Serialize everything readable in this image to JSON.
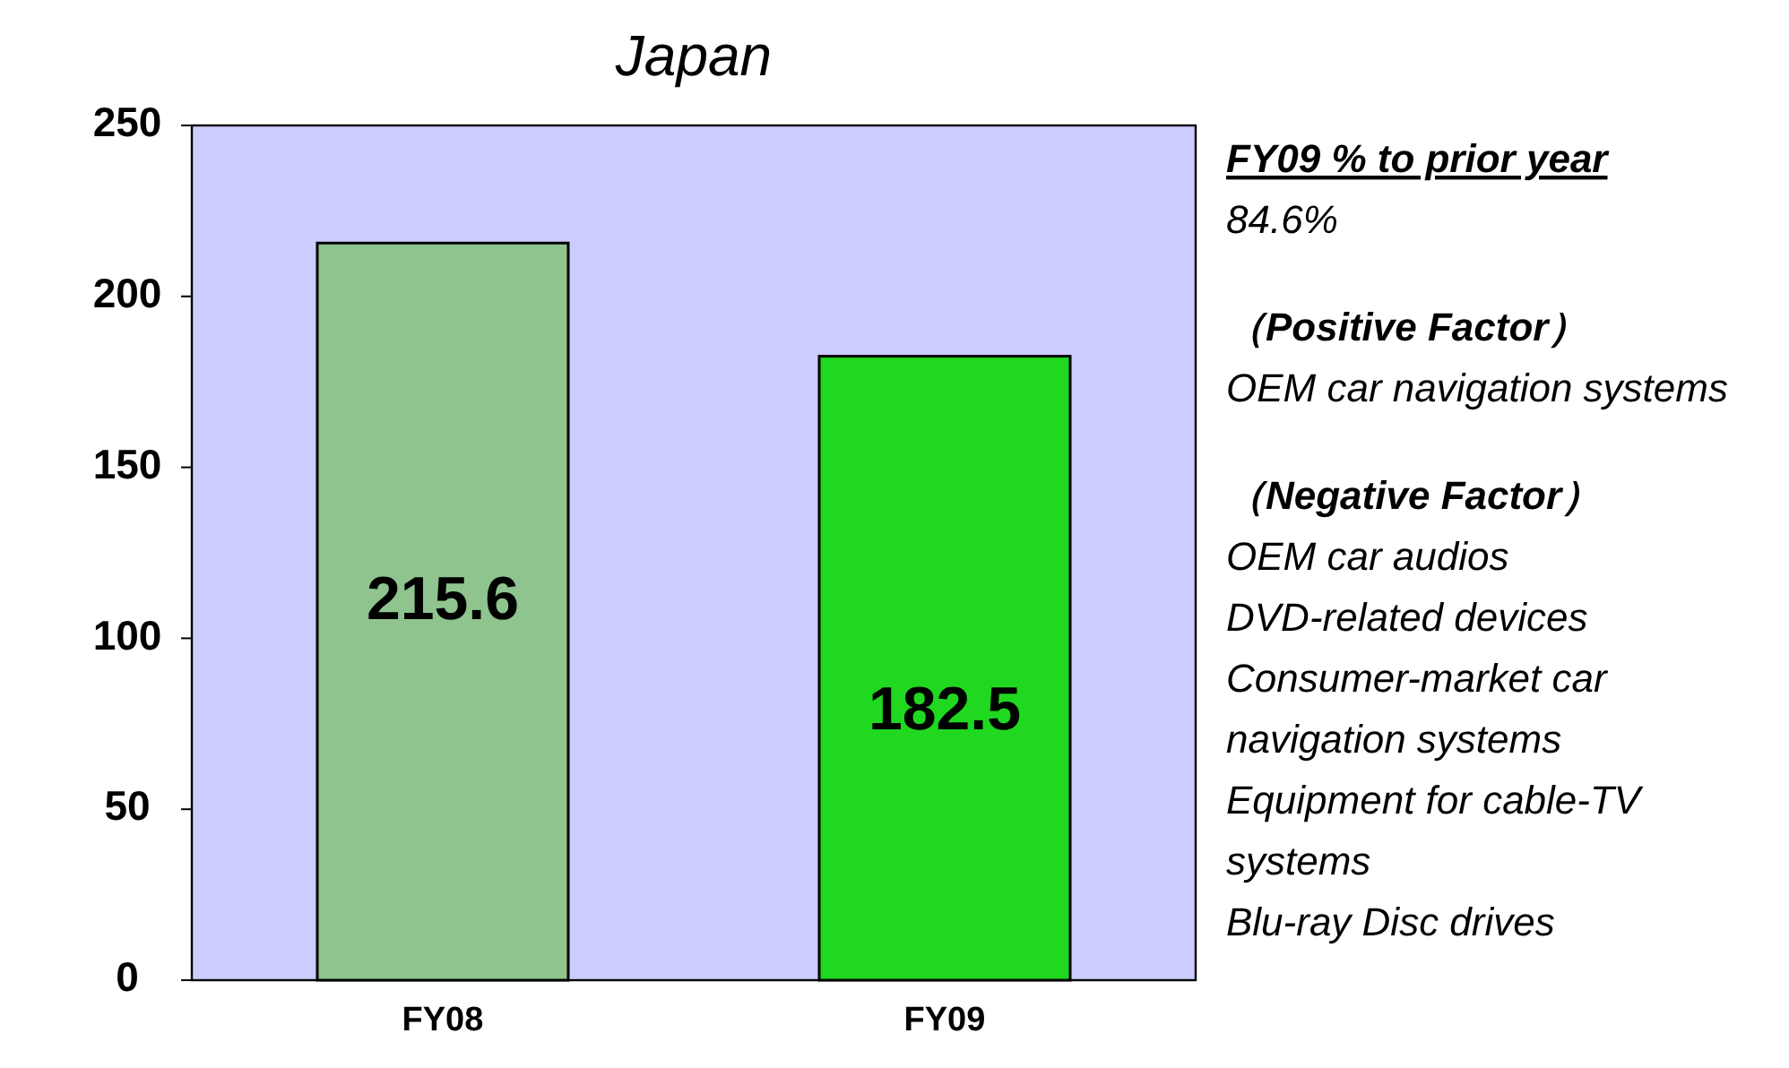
{
  "chart_data": {
    "type": "bar",
    "title": "Japan",
    "categories": [
      "FY08",
      "FY09"
    ],
    "values": [
      215.6,
      182.5
    ],
    "colors": [
      "#8fc48f",
      "#1fd81f"
    ],
    "ylim": [
      0,
      250
    ],
    "yticks": [
      0,
      50,
      100,
      150,
      200,
      250
    ],
    "data_labels": true,
    "grid": false,
    "annotations": [
      "FY09 % to prior year",
      "84.6%",
      "（Positive Factor）",
      "OEM car navigation systems",
      "（Negative Factor）",
      "OEM car audios",
      "DVD-related devices",
      "Consumer-market car navigation systems",
      "Equipment for cable-TV systems",
      "Blu-ray Disc drives"
    ]
  }
}
